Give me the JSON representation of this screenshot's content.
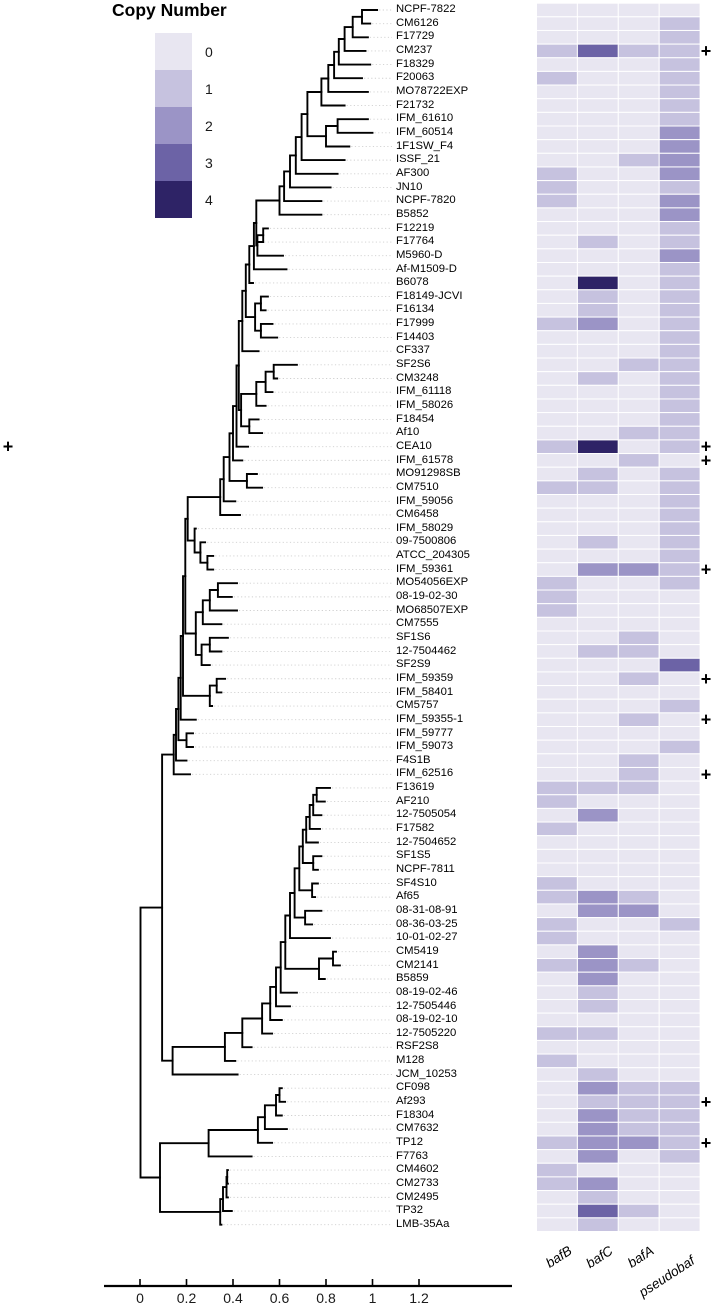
{
  "chart_data": {
    "type": "heatmap",
    "subtype": "phylogenetic-tree-with-heatmap",
    "legend": {
      "title": "Copy Number",
      "entries": [
        {
          "value": "0",
          "color": "#e8e6f1"
        },
        {
          "value": "1",
          "color": "#c6c2df"
        },
        {
          "value": "2",
          "color": "#9b94c6"
        },
        {
          "value": "3",
          "color": "#6c63a6"
        },
        {
          "value": "4",
          "color": "#2e2366"
        }
      ]
    },
    "columns": [
      "bafB",
      "bafC",
      "bafA",
      "pseudobaf"
    ],
    "plus_marker_glyph": "+",
    "left_plus_strain": "CEA10",
    "strains": [
      {
        "name": "NCPF-7822",
        "values": [
          0,
          0,
          0,
          0
        ],
        "plus": false
      },
      {
        "name": "CM6126",
        "values": [
          0,
          0,
          0,
          1
        ],
        "plus": false
      },
      {
        "name": "F17729",
        "values": [
          0,
          0,
          0,
          1
        ],
        "plus": false
      },
      {
        "name": "CM237",
        "values": [
          1,
          3,
          1,
          1
        ],
        "plus": true
      },
      {
        "name": "F18329",
        "values": [
          0,
          0,
          0,
          1
        ],
        "plus": false
      },
      {
        "name": "F20063",
        "values": [
          1,
          0,
          0,
          1
        ],
        "plus": false
      },
      {
        "name": "MO78722EXP",
        "values": [
          0,
          0,
          0,
          1
        ],
        "plus": false
      },
      {
        "name": "F21732",
        "values": [
          0,
          0,
          0,
          1
        ],
        "plus": false
      },
      {
        "name": "IFM_61610",
        "values": [
          0,
          0,
          0,
          1
        ],
        "plus": false
      },
      {
        "name": "IFM_60514",
        "values": [
          0,
          0,
          0,
          2
        ],
        "plus": false
      },
      {
        "name": "1F1SW_F4",
        "values": [
          0,
          0,
          0,
          2
        ],
        "plus": false
      },
      {
        "name": "ISSF_21",
        "values": [
          0,
          0,
          1,
          2
        ],
        "plus": false
      },
      {
        "name": "AF300",
        "values": [
          1,
          0,
          0,
          2
        ],
        "plus": false
      },
      {
        "name": "JN10",
        "values": [
          1,
          0,
          0,
          1
        ],
        "plus": false
      },
      {
        "name": "NCPF-7820",
        "values": [
          1,
          0,
          0,
          2
        ],
        "plus": false
      },
      {
        "name": "B5852",
        "values": [
          0,
          0,
          0,
          2
        ],
        "plus": false
      },
      {
        "name": "F12219",
        "values": [
          0,
          0,
          0,
          1
        ],
        "plus": false
      },
      {
        "name": "F17764",
        "values": [
          0,
          1,
          0,
          1
        ],
        "plus": false
      },
      {
        "name": "M5960-D",
        "values": [
          0,
          0,
          0,
          2
        ],
        "plus": false
      },
      {
        "name": "Af-M1509-D",
        "values": [
          0,
          0,
          0,
          1
        ],
        "plus": false
      },
      {
        "name": "B6078",
        "values": [
          0,
          4,
          0,
          1
        ],
        "plus": false
      },
      {
        "name": "F18149-JCVI",
        "values": [
          0,
          1,
          0,
          1
        ],
        "plus": false
      },
      {
        "name": "F16134",
        "values": [
          0,
          1,
          0,
          1
        ],
        "plus": false
      },
      {
        "name": "F17999",
        "values": [
          1,
          2,
          0,
          1
        ],
        "plus": false
      },
      {
        "name": "F14403",
        "values": [
          0,
          0,
          0,
          1
        ],
        "plus": false
      },
      {
        "name": "CF337",
        "values": [
          0,
          0,
          0,
          1
        ],
        "plus": false
      },
      {
        "name": "SF2S6",
        "values": [
          0,
          0,
          1,
          1
        ],
        "plus": false
      },
      {
        "name": "CM3248",
        "values": [
          0,
          1,
          0,
          1
        ],
        "plus": false
      },
      {
        "name": "IFM_61118",
        "values": [
          0,
          0,
          0,
          1
        ],
        "plus": false
      },
      {
        "name": "IFM_58026",
        "values": [
          0,
          0,
          0,
          1
        ],
        "plus": false
      },
      {
        "name": "F18454",
        "values": [
          0,
          0,
          0,
          1
        ],
        "plus": false
      },
      {
        "name": "Af10",
        "values": [
          0,
          0,
          1,
          1
        ],
        "plus": false
      },
      {
        "name": "CEA10",
        "values": [
          1,
          4,
          0,
          1
        ],
        "plus": true
      },
      {
        "name": "IFM_61578",
        "values": [
          0,
          0,
          1,
          0
        ],
        "plus": true
      },
      {
        "name": "MO91298SB",
        "values": [
          0,
          1,
          0,
          1
        ],
        "plus": false
      },
      {
        "name": "CM7510",
        "values": [
          1,
          1,
          0,
          1
        ],
        "plus": false
      },
      {
        "name": "IFM_59056",
        "values": [
          0,
          0,
          0,
          1
        ],
        "plus": false
      },
      {
        "name": "CM6458",
        "values": [
          0,
          0,
          0,
          1
        ],
        "plus": false
      },
      {
        "name": "IFM_58029",
        "values": [
          0,
          0,
          0,
          1
        ],
        "plus": false
      },
      {
        "name": "09-7500806",
        "values": [
          0,
          1,
          0,
          1
        ],
        "plus": false
      },
      {
        "name": "ATCC_204305",
        "values": [
          0,
          0,
          0,
          1
        ],
        "plus": false
      },
      {
        "name": "IFM_59361",
        "values": [
          0,
          2,
          2,
          1
        ],
        "plus": true
      },
      {
        "name": "MO54056EXP",
        "values": [
          1,
          0,
          0,
          1
        ],
        "plus": false
      },
      {
        "name": "08-19-02-30",
        "values": [
          1,
          0,
          0,
          0
        ],
        "plus": false
      },
      {
        "name": "MO68507EXP",
        "values": [
          1,
          0,
          0,
          0
        ],
        "plus": false
      },
      {
        "name": "CM7555",
        "values": [
          0,
          0,
          0,
          0
        ],
        "plus": false
      },
      {
        "name": "SF1S6",
        "values": [
          0,
          0,
          1,
          0
        ],
        "plus": false
      },
      {
        "name": "12-7504462",
        "values": [
          0,
          1,
          1,
          0
        ],
        "plus": false
      },
      {
        "name": "SF2S9",
        "values": [
          0,
          0,
          0,
          3
        ],
        "plus": false
      },
      {
        "name": "IFM_59359",
        "values": [
          0,
          0,
          1,
          0
        ],
        "plus": true
      },
      {
        "name": "IFM_58401",
        "values": [
          0,
          0,
          0,
          0
        ],
        "plus": false
      },
      {
        "name": "CM5757",
        "values": [
          0,
          0,
          0,
          1
        ],
        "plus": false
      },
      {
        "name": "IFM_59355-1",
        "values": [
          0,
          0,
          1,
          0
        ],
        "plus": true
      },
      {
        "name": "IFM_59777",
        "values": [
          0,
          0,
          0,
          0
        ],
        "plus": false
      },
      {
        "name": "IFM_59073",
        "values": [
          0,
          0,
          0,
          1
        ],
        "plus": false
      },
      {
        "name": "F4S1B",
        "values": [
          0,
          0,
          1,
          0
        ],
        "plus": false
      },
      {
        "name": "IFM_62516",
        "values": [
          0,
          0,
          1,
          0
        ],
        "plus": true
      },
      {
        "name": "F13619",
        "values": [
          1,
          1,
          1,
          0
        ],
        "plus": false
      },
      {
        "name": "AF210",
        "values": [
          1,
          0,
          0,
          0
        ],
        "plus": false
      },
      {
        "name": "12-7505054",
        "values": [
          0,
          2,
          0,
          0
        ],
        "plus": false
      },
      {
        "name": "F17582",
        "values": [
          1,
          0,
          0,
          0
        ],
        "plus": false
      },
      {
        "name": "12-7504652",
        "values": [
          0,
          0,
          0,
          0
        ],
        "plus": false
      },
      {
        "name": "SF1S5",
        "values": [
          0,
          0,
          0,
          0
        ],
        "plus": false
      },
      {
        "name": "NCPF-7811",
        "values": [
          0,
          0,
          0,
          0
        ],
        "plus": false
      },
      {
        "name": "SF4S10",
        "values": [
          1,
          0,
          0,
          0
        ],
        "plus": false
      },
      {
        "name": "Af65",
        "values": [
          1,
          2,
          1,
          0
        ],
        "plus": false
      },
      {
        "name": "08-31-08-91",
        "values": [
          0,
          2,
          2,
          0
        ],
        "plus": false
      },
      {
        "name": "08-36-03-25",
        "values": [
          1,
          0,
          0,
          1
        ],
        "plus": false
      },
      {
        "name": "10-01-02-27",
        "values": [
          1,
          0,
          0,
          0
        ],
        "plus": false
      },
      {
        "name": "CM5419",
        "values": [
          0,
          2,
          0,
          0
        ],
        "plus": false
      },
      {
        "name": "CM2141",
        "values": [
          1,
          2,
          1,
          0
        ],
        "plus": false
      },
      {
        "name": "B5859",
        "values": [
          0,
          2,
          0,
          0
        ],
        "plus": false
      },
      {
        "name": "08-19-02-46",
        "values": [
          0,
          1,
          0,
          0
        ],
        "plus": false
      },
      {
        "name": "12-7505446",
        "values": [
          0,
          1,
          0,
          0
        ],
        "plus": false
      },
      {
        "name": "08-19-02-10",
        "values": [
          0,
          0,
          0,
          0
        ],
        "plus": false
      },
      {
        "name": "12-7505220",
        "values": [
          1,
          1,
          0,
          0
        ],
        "plus": false
      },
      {
        "name": "RSF2S8",
        "values": [
          0,
          0,
          0,
          0
        ],
        "plus": false
      },
      {
        "name": "M128",
        "values": [
          1,
          0,
          0,
          0
        ],
        "plus": false
      },
      {
        "name": "JCM_10253",
        "values": [
          0,
          1,
          0,
          0
        ],
        "plus": false
      },
      {
        "name": "CF098",
        "values": [
          0,
          2,
          1,
          1
        ],
        "plus": false
      },
      {
        "name": "Af293",
        "values": [
          0,
          1,
          1,
          1
        ],
        "plus": true
      },
      {
        "name": "F18304",
        "values": [
          0,
          2,
          1,
          1
        ],
        "plus": false
      },
      {
        "name": "CM7632",
        "values": [
          0,
          2,
          1,
          1
        ],
        "plus": false
      },
      {
        "name": "TP12",
        "values": [
          1,
          2,
          2,
          1
        ],
        "plus": true
      },
      {
        "name": "F7763",
        "values": [
          0,
          2,
          0,
          1
        ],
        "plus": false
      },
      {
        "name": "CM4602",
        "values": [
          1,
          0,
          0,
          0
        ],
        "plus": false
      },
      {
        "name": "CM2733",
        "values": [
          1,
          2,
          0,
          0
        ],
        "plus": false
      },
      {
        "name": "CM2495",
        "values": [
          0,
          1,
          0,
          0
        ],
        "plus": false
      },
      {
        "name": "TP32",
        "values": [
          0,
          3,
          1,
          0
        ],
        "plus": false
      },
      {
        "name": "LMB-35Aa",
        "values": [
          0,
          1,
          0,
          0
        ],
        "plus": false
      }
    ],
    "tree": {
      "tip_depths": [
        1.02,
        0.99,
        0.98,
        0.97,
        0.99,
        0.955,
        0.98,
        0.88,
        0.98,
        1.0,
        0.9,
        0.88,
        0.85,
        0.82,
        0.78,
        0.78,
        0.55,
        0.51,
        0.615,
        0.63,
        0.486,
        0.55,
        0.54,
        0.57,
        0.59,
        0.51,
        0.675,
        0.59,
        0.57,
        0.54,
        0.51,
        0.525,
        0.465,
        0.44,
        0.503,
        0.525,
        0.41,
        0.43,
        0.24,
        0.28,
        0.315,
        0.315,
        0.417,
        0.395,
        0.417,
        0.35,
        0.378,
        0.35,
        0.3,
        0.366,
        0.35,
        0.31,
        0.24,
        0.228,
        0.228,
        0.2,
        0.215,
        0.817,
        0.795,
        0.78,
        0.774,
        0.765,
        0.78,
        0.765,
        0.765,
        0.753,
        0.78,
        0.74,
        0.817,
        0.843,
        0.86,
        0.795,
        0.675,
        0.645,
        0.61,
        0.568,
        0.48,
        0.41,
        0.42,
        0.61,
        0.624,
        0.61,
        0.632,
        0.568,
        0.48,
        0.378,
        0.378,
        0.378,
        0.395,
        0.35
      ],
      "join_depths": [
        0.955,
        0.915,
        0.88,
        0.855,
        0.835,
        0.81,
        0.78,
        0.72,
        0.85,
        0.8,
        0.695,
        0.67,
        0.645,
        0.62,
        0.6,
        0.5,
        0.53,
        0.505,
        0.49,
        0.47,
        0.455,
        0.52,
        0.495,
        0.52,
        0.44,
        0.425,
        0.575,
        0.54,
        0.5,
        0.435,
        0.47,
        0.415,
        0.4,
        0.385,
        0.46,
        0.36,
        0.345,
        0.205,
        0.235,
        0.26,
        0.29,
        0.195,
        0.335,
        0.3,
        0.27,
        0.24,
        0.3,
        0.265,
        0.185,
        0.33,
        0.3,
        0.175,
        0.165,
        0.2,
        0.155,
        0.145,
        0.095,
        0.76,
        0.745,
        0.73,
        0.715,
        0.7,
        0.745,
        0.685,
        0.74,
        0.665,
        0.71,
        0.645,
        0.625,
        0.83,
        0.77,
        0.605,
        0.585,
        0.56,
        0.525,
        0.44,
        0.365,
        0.14,
        0.002,
        0.6,
        0.585,
        0.537,
        0.507,
        0.295,
        0.086,
        0.375,
        0.372,
        0.357,
        0.345
      ]
    },
    "axis": {
      "tick_labels": [
        "0",
        "0.2",
        "0.4",
        "0.6",
        "0.8",
        "1",
        "1.2"
      ],
      "tick_values": [
        0,
        0.2,
        0.4,
        0.6,
        0.8,
        1.0,
        1.2
      ]
    }
  }
}
